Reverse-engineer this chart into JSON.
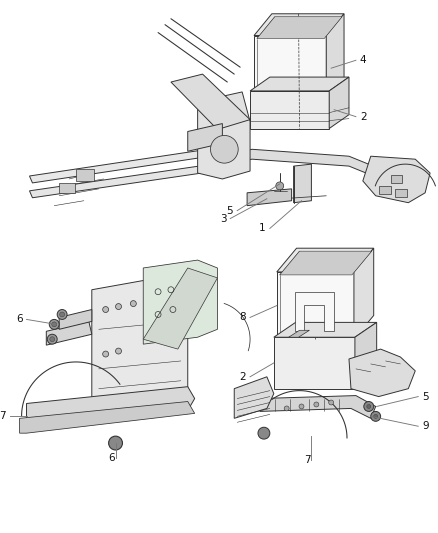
{
  "bg_color": "#ffffff",
  "fig_width": 4.38,
  "fig_height": 5.33,
  "dpi": 100,
  "line_color": "#555555",
  "callout_color": "#222222",
  "callout_fontsize": 7.5,
  "leader_color": "#777777",
  "leader_lw": 0.6,
  "drawing_lw": 0.7,
  "drawing_color": "#333333"
}
